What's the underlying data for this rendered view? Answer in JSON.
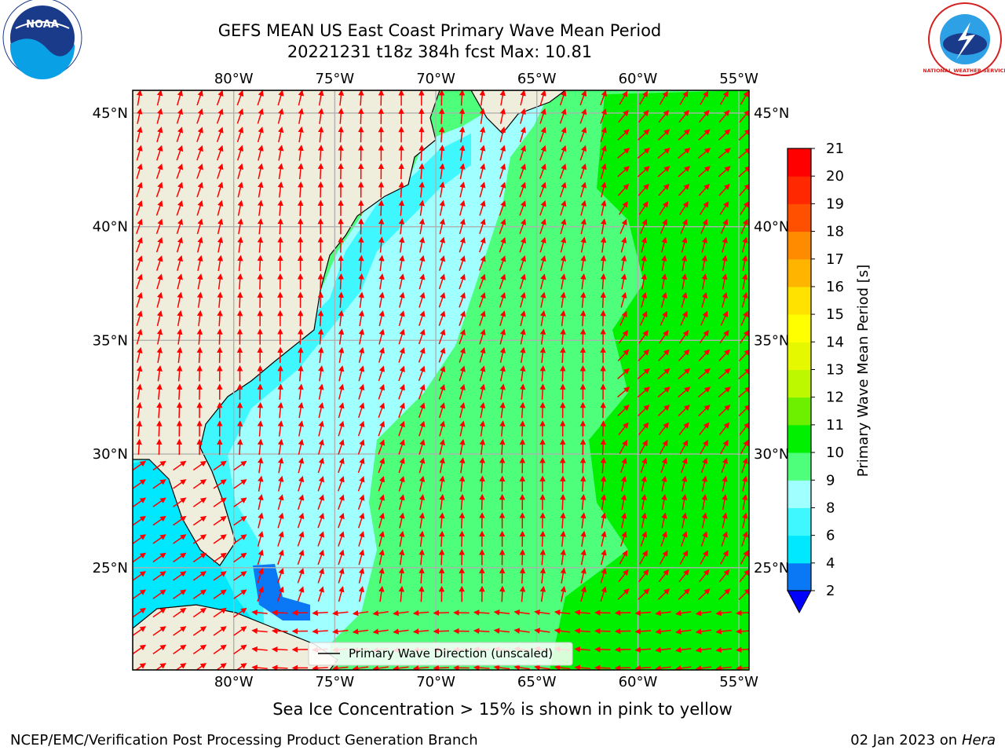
{
  "title": {
    "line1": "GEFS MEAN US East Coast Primary Wave Mean Period",
    "line2": "20221231 t18z 384h fcst   Max: 10.81"
  },
  "map": {
    "lon_range": [
      -85,
      -54.5
    ],
    "lat_range": [
      20.5,
      46
    ],
    "lon_ticks": [
      "80°W",
      "75°W",
      "70°W",
      "65°W",
      "60°W",
      "55°W"
    ],
    "lat_ticks": [
      "45°N",
      "40°N",
      "35°N",
      "30°N",
      "25°N"
    ],
    "legend_label": "Primary Wave Direction (unscaled)",
    "land_color": "#efeedc",
    "arrow_color": "#ff0000",
    "grid": true
  },
  "colorbar": {
    "label": "Primary Wave Mean Period [s]",
    "levels": [
      "2",
      "4",
      "6",
      "8",
      "9",
      "10",
      "11",
      "12",
      "13",
      "14",
      "15",
      "16",
      "17",
      "18",
      "19",
      "20",
      "21"
    ],
    "colors": [
      "#0a78f5",
      "#00e8ff",
      "#3ff8ff",
      "#a0ffff",
      "#4dff7a",
      "#00f000",
      "#6cf000",
      "#bef800",
      "#e6f800",
      "#ffff00",
      "#ffe200",
      "#ffb400",
      "#ff8c00",
      "#ff5000",
      "#ff2800",
      "#ff0000"
    ],
    "under_color": "#0000ff"
  },
  "note": "Sea Ice Concentration > 15% is shown in pink to yellow",
  "footer": {
    "left": "NCEP/EMC/Verification Post Processing Product Generation Branch",
    "date": "02 Jan 2023 on",
    "machine": "Hera"
  },
  "logos": {
    "noaa_text": "NOAA",
    "nws_text": "NATIONAL WEATHER SERVICE"
  }
}
